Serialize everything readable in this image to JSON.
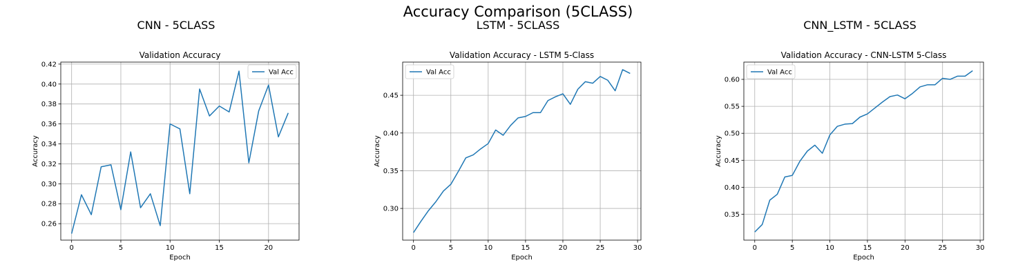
{
  "figure": {
    "suptitle": "Accuracy Comparison (5CLASS)",
    "line_color": "#1f77b4"
  },
  "chart_data": [
    {
      "type": "line",
      "panel_title": "CNN - 5CLASS",
      "title": "Validation Accuracy",
      "xlabel": "Epoch",
      "ylabel": "Accuracy",
      "xlim": [
        -1.1,
        23.1
      ],
      "ylim": [
        0.2435,
        0.422
      ],
      "xticks": [
        0,
        5,
        10,
        15,
        20
      ],
      "yticks": [
        0.26,
        0.28,
        0.3,
        0.32,
        0.34,
        0.36,
        0.38,
        0.4,
        0.42
      ],
      "ytick_labels": [
        "0.26",
        "0.28",
        "0.30",
        "0.32",
        "0.34",
        "0.36",
        "0.38",
        "0.40",
        "0.42"
      ],
      "grid": true,
      "legend": "upper right",
      "series": [
        {
          "name": "Val Acc",
          "x": [
            0,
            1,
            2,
            3,
            4,
            5,
            6,
            7,
            8,
            9,
            10,
            11,
            12,
            13,
            14,
            15,
            16,
            17,
            18,
            19,
            20,
            21,
            22
          ],
          "values": [
            0.25,
            0.289,
            0.269,
            0.317,
            0.319,
            0.274,
            0.332,
            0.276,
            0.29,
            0.258,
            0.36,
            0.355,
            0.29,
            0.395,
            0.368,
            0.378,
            0.372,
            0.413,
            0.321,
            0.373,
            0.399,
            0.347,
            0.371
          ]
        }
      ]
    },
    {
      "type": "line",
      "panel_title": "LSTM - 5CLASS",
      "title": "Validation Accuracy - LSTM 5-Class",
      "xlabel": "Epoch",
      "ylabel": "Accuracy",
      "xlim": [
        -1.45,
        30.45
      ],
      "ylim": [
        0.258,
        0.494
      ],
      "xticks": [
        0,
        5,
        10,
        15,
        20,
        25,
        30
      ],
      "yticks": [
        0.3,
        0.35,
        0.4,
        0.45
      ],
      "ytick_labels": [
        "0.30",
        "0.35",
        "0.40",
        "0.45"
      ],
      "grid": true,
      "legend": "upper left",
      "series": [
        {
          "name": "Val Acc",
          "x": [
            0,
            1,
            2,
            3,
            4,
            5,
            6,
            7,
            8,
            9,
            10,
            11,
            12,
            13,
            14,
            15,
            16,
            17,
            18,
            19,
            20,
            21,
            22,
            23,
            24,
            25,
            26,
            27,
            28,
            29
          ],
          "values": [
            0.268,
            0.283,
            0.297,
            0.309,
            0.323,
            0.332,
            0.349,
            0.367,
            0.371,
            0.379,
            0.386,
            0.404,
            0.397,
            0.41,
            0.42,
            0.422,
            0.427,
            0.427,
            0.443,
            0.448,
            0.452,
            0.438,
            0.458,
            0.468,
            0.466,
            0.475,
            0.47,
            0.456,
            0.484,
            0.479
          ]
        }
      ]
    },
    {
      "type": "line",
      "panel_title": "CNN_LSTM - 5CLASS",
      "title": "Validation Accuracy - CNN-LSTM 5-Class",
      "xlabel": "Epoch",
      "ylabel": "Accuracy",
      "xlim": [
        -1.45,
        30.45
      ],
      "ylim": [
        0.302,
        0.632
      ],
      "xticks": [
        0,
        5,
        10,
        15,
        20,
        25,
        30
      ],
      "yticks": [
        0.35,
        0.4,
        0.45,
        0.5,
        0.55,
        0.6
      ],
      "ytick_labels": [
        "0.35",
        "0.40",
        "0.45",
        "0.50",
        "0.55",
        "0.60"
      ],
      "grid": true,
      "legend": "upper left",
      "series": [
        {
          "name": "Val Acc",
          "x": [
            0,
            1,
            2,
            3,
            4,
            5,
            6,
            7,
            8,
            9,
            10,
            11,
            12,
            13,
            14,
            15,
            16,
            17,
            18,
            19,
            20,
            21,
            22,
            23,
            24,
            25,
            26,
            27,
            28,
            29
          ],
          "values": [
            0.317,
            0.331,
            0.376,
            0.387,
            0.419,
            0.422,
            0.448,
            0.467,
            0.478,
            0.463,
            0.497,
            0.513,
            0.517,
            0.518,
            0.53,
            0.536,
            0.547,
            0.558,
            0.568,
            0.571,
            0.564,
            0.574,
            0.586,
            0.59,
            0.59,
            0.602,
            0.6,
            0.606,
            0.606,
            0.616
          ]
        }
      ]
    }
  ]
}
